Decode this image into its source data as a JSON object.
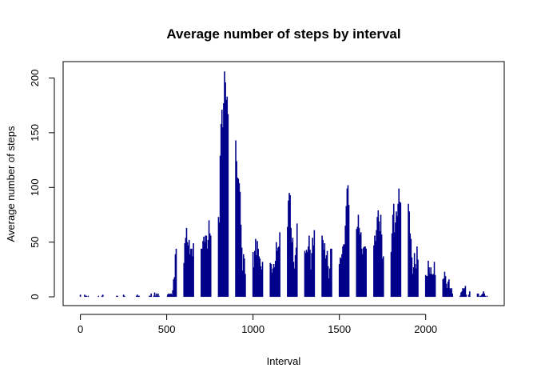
{
  "chart_data": {
    "type": "bar",
    "title": "Average number of steps by interval",
    "xlabel": "Interval",
    "ylabel": "Average number of steps",
    "xlim": [
      -100,
      2455
    ],
    "ylim": [
      -8,
      215
    ],
    "xticks": [
      0,
      500,
      1000,
      1500,
      2000
    ],
    "yticks": [
      0,
      50,
      100,
      150,
      200
    ],
    "bar_color": "#00008B",
    "grid": false,
    "legend": "none",
    "series": [
      {
        "points": [
          [
            0,
            2
          ],
          [
            5,
            0
          ],
          [
            10,
            0
          ],
          [
            15,
            0
          ],
          [
            20,
            0
          ],
          [
            25,
            2
          ],
          [
            30,
            1
          ],
          [
            35,
            1
          ],
          [
            40,
            0
          ],
          [
            45,
            1
          ],
          [
            50,
            0
          ],
          [
            55,
            0
          ],
          [
            100,
            0
          ],
          [
            105,
            1
          ],
          [
            110,
            0
          ],
          [
            115,
            0
          ],
          [
            120,
            0
          ],
          [
            125,
            1
          ],
          [
            130,
            2
          ],
          [
            135,
            0
          ],
          [
            140,
            0
          ],
          [
            145,
            0
          ],
          [
            150,
            0
          ],
          [
            155,
            0
          ],
          [
            200,
            0
          ],
          [
            205,
            0
          ],
          [
            210,
            1
          ],
          [
            215,
            1
          ],
          [
            220,
            0
          ],
          [
            225,
            0
          ],
          [
            230,
            0
          ],
          [
            235,
            0
          ],
          [
            240,
            0
          ],
          [
            245,
            0
          ],
          [
            250,
            2
          ],
          [
            255,
            1
          ],
          [
            300,
            0
          ],
          [
            305,
            0
          ],
          [
            310,
            0
          ],
          [
            315,
            0
          ],
          [
            320,
            0
          ],
          [
            325,
            1
          ],
          [
            330,
            2
          ],
          [
            335,
            1
          ],
          [
            340,
            1
          ],
          [
            345,
            0
          ],
          [
            350,
            0
          ],
          [
            355,
            0
          ],
          [
            400,
            1
          ],
          [
            405,
            1
          ],
          [
            410,
            3
          ],
          [
            415,
            0
          ],
          [
            420,
            0
          ],
          [
            425,
            1
          ],
          [
            430,
            4
          ],
          [
            435,
            1
          ],
          [
            440,
            3
          ],
          [
            445,
            1
          ],
          [
            450,
            3
          ],
          [
            455,
            1
          ],
          [
            500,
            0
          ],
          [
            505,
            2
          ],
          [
            510,
            3
          ],
          [
            515,
            2
          ],
          [
            520,
            3
          ],
          [
            525,
            3
          ],
          [
            530,
            2
          ],
          [
            535,
            6
          ],
          [
            540,
            16
          ],
          [
            545,
            18
          ],
          [
            550,
            39
          ],
          [
            555,
            44
          ],
          [
            600,
            31
          ],
          [
            605,
            49
          ],
          [
            610,
            54
          ],
          [
            615,
            63
          ],
          [
            620,
            50
          ],
          [
            625,
            47
          ],
          [
            630,
            52
          ],
          [
            635,
            39
          ],
          [
            640,
            44
          ],
          [
            645,
            44
          ],
          [
            650,
            37
          ],
          [
            655,
            49
          ],
          [
            700,
            44
          ],
          [
            705,
            44
          ],
          [
            710,
            51
          ],
          [
            715,
            55
          ],
          [
            720,
            50
          ],
          [
            725,
            56
          ],
          [
            730,
            56
          ],
          [
            735,
            44
          ],
          [
            740,
            52
          ],
          [
            745,
            70
          ],
          [
            750,
            58
          ],
          [
            755,
            56
          ],
          [
            800,
            73
          ],
          [
            805,
            68
          ],
          [
            810,
            129
          ],
          [
            815,
            158
          ],
          [
            820,
            171
          ],
          [
            825,
            155
          ],
          [
            830,
            177
          ],
          [
            835,
            206
          ],
          [
            840,
            196
          ],
          [
            845,
            180
          ],
          [
            850,
            183
          ],
          [
            855,
            167
          ],
          [
            900,
            143
          ],
          [
            905,
            124
          ],
          [
            910,
            109
          ],
          [
            915,
            108
          ],
          [
            920,
            104
          ],
          [
            925,
            96
          ],
          [
            930,
            66
          ],
          [
            935,
            45
          ],
          [
            940,
            24
          ],
          [
            945,
            39
          ],
          [
            950,
            35
          ],
          [
            955,
            21
          ],
          [
            1000,
            41
          ],
          [
            1005,
            27
          ],
          [
            1010,
            42
          ],
          [
            1015,
            53
          ],
          [
            1020,
            38
          ],
          [
            1025,
            51
          ],
          [
            1030,
            44
          ],
          [
            1035,
            37
          ],
          [
            1040,
            35
          ],
          [
            1045,
            28
          ],
          [
            1050,
            25
          ],
          [
            1055,
            32
          ],
          [
            1100,
            31
          ],
          [
            1105,
            30
          ],
          [
            1110,
            22
          ],
          [
            1115,
            26
          ],
          [
            1120,
            30
          ],
          [
            1125,
            27
          ],
          [
            1130,
            33
          ],
          [
            1135,
            50
          ],
          [
            1140,
            42
          ],
          [
            1145,
            45
          ],
          [
            1150,
            46
          ],
          [
            1155,
            59
          ],
          [
            1200,
            64
          ],
          [
            1205,
            88
          ],
          [
            1210,
            95
          ],
          [
            1215,
            93
          ],
          [
            1220,
            63
          ],
          [
            1225,
            50
          ],
          [
            1230,
            54
          ],
          [
            1235,
            32
          ],
          [
            1240,
            26
          ],
          [
            1245,
            38
          ],
          [
            1250,
            45
          ],
          [
            1255,
            67
          ],
          [
            1300,
            42
          ],
          [
            1305,
            40
          ],
          [
            1310,
            43
          ],
          [
            1315,
            41
          ],
          [
            1320,
            46
          ],
          [
            1325,
            56
          ],
          [
            1330,
            43
          ],
          [
            1335,
            25
          ],
          [
            1340,
            40
          ],
          [
            1345,
            54
          ],
          [
            1350,
            47
          ],
          [
            1355,
            61
          ],
          [
            1400,
            56
          ],
          [
            1405,
            52
          ],
          [
            1410,
            43
          ],
          [
            1415,
            49
          ],
          [
            1420,
            35
          ],
          [
            1425,
            38
          ],
          [
            1430,
            42
          ],
          [
            1435,
            28
          ],
          [
            1440,
            17
          ],
          [
            1445,
            26
          ],
          [
            1450,
            44
          ],
          [
            1455,
            44
          ],
          [
            1500,
            30
          ],
          [
            1505,
            36
          ],
          [
            1510,
            35
          ],
          [
            1515,
            39
          ],
          [
            1520,
            46
          ],
          [
            1525,
            48
          ],
          [
            1530,
            48
          ],
          [
            1535,
            65
          ],
          [
            1540,
            83
          ],
          [
            1545,
            99
          ],
          [
            1550,
            102
          ],
          [
            1555,
            84
          ],
          [
            1600,
            62
          ],
          [
            1605,
            64
          ],
          [
            1610,
            75
          ],
          [
            1615,
            63
          ],
          [
            1620,
            57
          ],
          [
            1625,
            59
          ],
          [
            1630,
            44
          ],
          [
            1635,
            39
          ],
          [
            1640,
            45
          ],
          [
            1645,
            46
          ],
          [
            1650,
            46
          ],
          [
            1655,
            44
          ],
          [
            1700,
            47
          ],
          [
            1705,
            56
          ],
          [
            1710,
            51
          ],
          [
            1715,
            61
          ],
          [
            1720,
            73
          ],
          [
            1725,
            79
          ],
          [
            1730,
            69
          ],
          [
            1735,
            60
          ],
          [
            1740,
            75
          ],
          [
            1745,
            57
          ],
          [
            1750,
            35
          ],
          [
            1755,
            37
          ],
          [
            1800,
            41
          ],
          [
            1805,
            58
          ],
          [
            1810,
            75
          ],
          [
            1815,
            85
          ],
          [
            1820,
            59
          ],
          [
            1825,
            68
          ],
          [
            1830,
            78
          ],
          [
            1835,
            74
          ],
          [
            1840,
            85
          ],
          [
            1845,
            99
          ],
          [
            1850,
            87
          ],
          [
            1855,
            86
          ],
          [
            1900,
            85
          ],
          [
            1905,
            78
          ],
          [
            1910,
            58
          ],
          [
            1915,
            53
          ],
          [
            1920,
            36
          ],
          [
            1925,
            21
          ],
          [
            1930,
            27
          ],
          [
            1935,
            40
          ],
          [
            1940,
            30
          ],
          [
            1945,
            26
          ],
          [
            1950,
            46
          ],
          [
            1955,
            34
          ],
          [
            2000,
            20
          ],
          [
            2005,
            19
          ],
          [
            2010,
            19
          ],
          [
            2015,
            33
          ],
          [
            2020,
            27
          ],
          [
            2025,
            21
          ],
          [
            2030,
            27
          ],
          [
            2035,
            21
          ],
          [
            2040,
            20
          ],
          [
            2045,
            21
          ],
          [
            2050,
            32
          ],
          [
            2055,
            20
          ],
          [
            2100,
            16
          ],
          [
            2105,
            17
          ],
          [
            2110,
            23
          ],
          [
            2115,
            19
          ],
          [
            2120,
            12
          ],
          [
            2125,
            8
          ],
          [
            2130,
            14
          ],
          [
            2135,
            16
          ],
          [
            2140,
            8
          ],
          [
            2145,
            7
          ],
          [
            2150,
            8
          ],
          [
            2155,
            3
          ],
          [
            2200,
            1
          ],
          [
            2205,
            4
          ],
          [
            2210,
            5
          ],
          [
            2215,
            8
          ],
          [
            2220,
            7
          ],
          [
            2225,
            8
          ],
          [
            2230,
            10
          ],
          [
            2235,
            2
          ],
          [
            2240,
            0
          ],
          [
            2245,
            0
          ],
          [
            2250,
            2
          ],
          [
            2255,
            5
          ],
          [
            2300,
            3
          ],
          [
            2305,
            3
          ],
          [
            2310,
            0
          ],
          [
            2315,
            1
          ],
          [
            2320,
            1
          ],
          [
            2325,
            2
          ],
          [
            2330,
            3
          ],
          [
            2335,
            5
          ],
          [
            2340,
            3
          ],
          [
            2345,
            1
          ],
          [
            2350,
            0
          ],
          [
            2355,
            1
          ]
        ]
      }
    ]
  }
}
